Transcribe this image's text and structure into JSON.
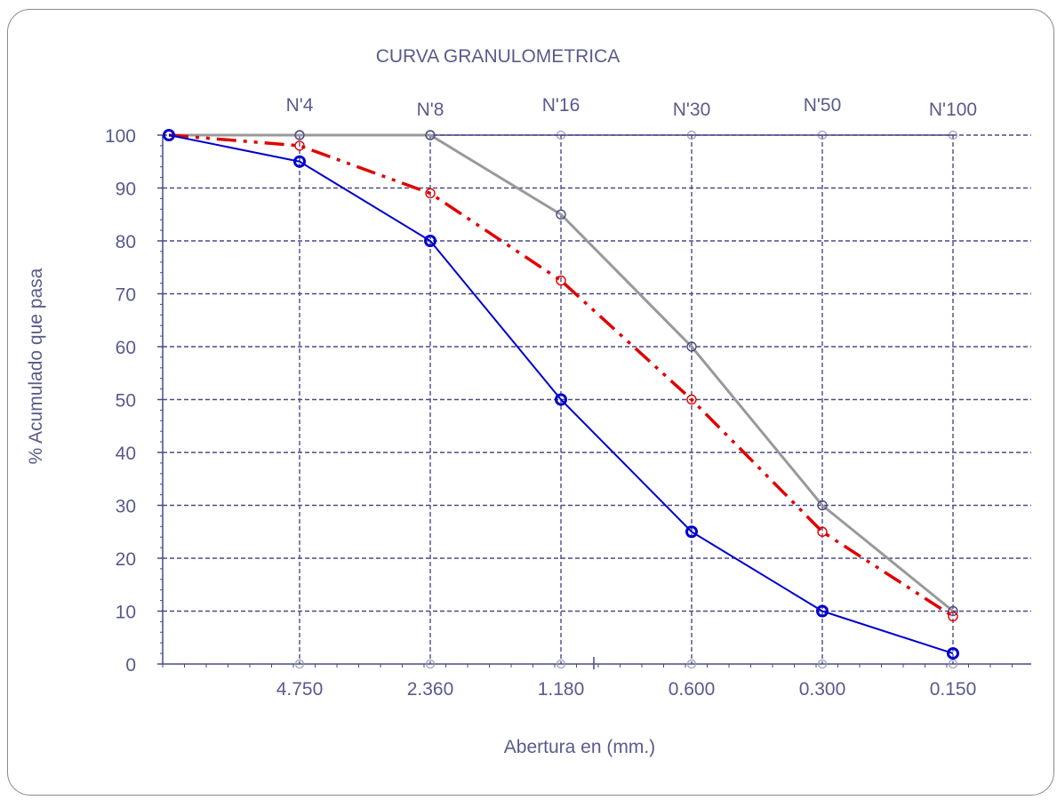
{
  "chart_data": {
    "type": "line",
    "title": "CURVA GRANULOMETRICA",
    "xlabel": "Abertura en (mm.)",
    "ylabel": "% Acumulado que pasa",
    "sieve_labels": [
      "N'4",
      "N'8",
      "N'16",
      "N'30",
      "N'50",
      "N'100"
    ],
    "x_tick_labels": [
      "4.750",
      "2.360",
      "1.180",
      "0.600",
      "0.300",
      "0.150"
    ],
    "y_ticks": [
      0,
      10,
      20,
      30,
      40,
      50,
      60,
      70,
      80,
      90,
      100
    ],
    "ylim": [
      0,
      100
    ],
    "grid": true,
    "series": [
      {
        "color": "#0000cc",
        "values": [
          100,
          95,
          80,
          50,
          25,
          10,
          2
        ]
      },
      {
        "color": "#e00000",
        "values": [
          100,
          98,
          89,
          72.5,
          50,
          25,
          9
        ]
      },
      {
        "color": "#999999",
        "values": [
          100,
          100,
          100,
          85,
          60,
          30,
          10
        ]
      }
    ],
    "x_positions": [
      "origin",
      "4.750",
      "2.360",
      "1.180",
      "0.600",
      "0.300",
      "0.150"
    ],
    "colors": {
      "text": "#5a5a8c",
      "grid": "#4a4a88",
      "frame": "#8a8a8a"
    }
  }
}
